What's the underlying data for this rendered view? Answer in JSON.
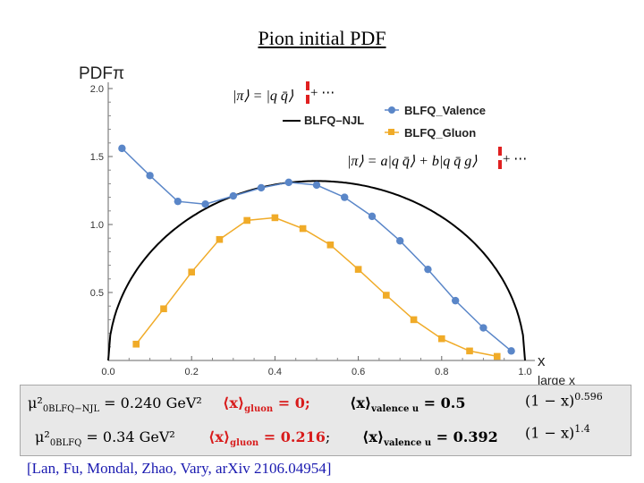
{
  "title": "Pion initial PDF",
  "citation": "[Lan, Fu, Mondal, Zhao, Vary, arXiv 2106.04954]",
  "chart_data": {
    "type": "line",
    "title": "",
    "ylabel": "PDFπ",
    "xlabel": "x",
    "xlim": [
      0,
      1
    ],
    "ylim": [
      0,
      2.0
    ],
    "xticks": [
      "0.0",
      "0.2",
      "0.4",
      "0.6",
      "0.8",
      "1.0"
    ],
    "yticks": [
      "0.5",
      "1.0",
      "1.5",
      "2.0"
    ],
    "large_x_label": "large x",
    "legend_position": "top-right",
    "series": [
      {
        "name": "BLFQ_Valence",
        "color": "#5a86c8",
        "marker": "circle",
        "x": [
          0.033,
          0.1,
          0.167,
          0.233,
          0.3,
          0.367,
          0.433,
          0.5,
          0.567,
          0.633,
          0.7,
          0.767,
          0.833,
          0.9,
          0.967
        ],
        "y": [
          1.56,
          1.36,
          1.17,
          1.15,
          1.21,
          1.27,
          1.31,
          1.29,
          1.2,
          1.06,
          0.88,
          0.67,
          0.44,
          0.24,
          0.07
        ]
      },
      {
        "name": "BLFQ_Gluon",
        "color": "#f0ab28",
        "marker": "square",
        "x": [
          0.067,
          0.133,
          0.2,
          0.267,
          0.333,
          0.4,
          0.467,
          0.533,
          0.6,
          0.667,
          0.733,
          0.8,
          0.867,
          0.933
        ],
        "y": [
          0.12,
          0.38,
          0.65,
          0.89,
          1.03,
          1.05,
          0.97,
          0.85,
          0.67,
          0.48,
          0.3,
          0.16,
          0.07,
          0.03
        ]
      },
      {
        "name": "BLFQ–NJL",
        "color": "#000000",
        "marker": "none",
        "curve": "semicircle",
        "center_x": 0.5,
        "peak_y": 1.32
      }
    ]
  },
  "annotations": {
    "state1_left": "|π⟩ = |q q̄⟩",
    "state1_right": "+ ⋯",
    "state2_left": "|π⟩ = a|q q̄⟩ + b|q q̄ g⟩",
    "state2_right": "+ ⋯"
  },
  "equations": {
    "row1": {
      "mu_label": "μ²",
      "mu_sub": "0BLFQ−NJL",
      "mu_value": " = 0.240 GeV²",
      "gluon": "⟨x⟩",
      "gluon_sub": "gluon",
      "gluon_value": " = 0;",
      "valence": "⟨x⟩",
      "valence_sub": "valence u",
      "valence_value": " = 0.5",
      "behavior": "(1 − x)",
      "behavior_exp": "0.596"
    },
    "row2": {
      "mu_label": "μ²",
      "mu_sub": "0BLFQ",
      "mu_value": " = 0.34 GeV²",
      "gluon": "⟨x⟩",
      "gluon_sub": "gluon",
      "gluon_value": " = 0.216",
      "separator": "; ",
      "valence": "⟨x⟩",
      "valence_sub": "valence u",
      "valence_value": " = 0.392",
      "behavior": "(1 − x)",
      "behavior_exp": "1.4"
    }
  }
}
